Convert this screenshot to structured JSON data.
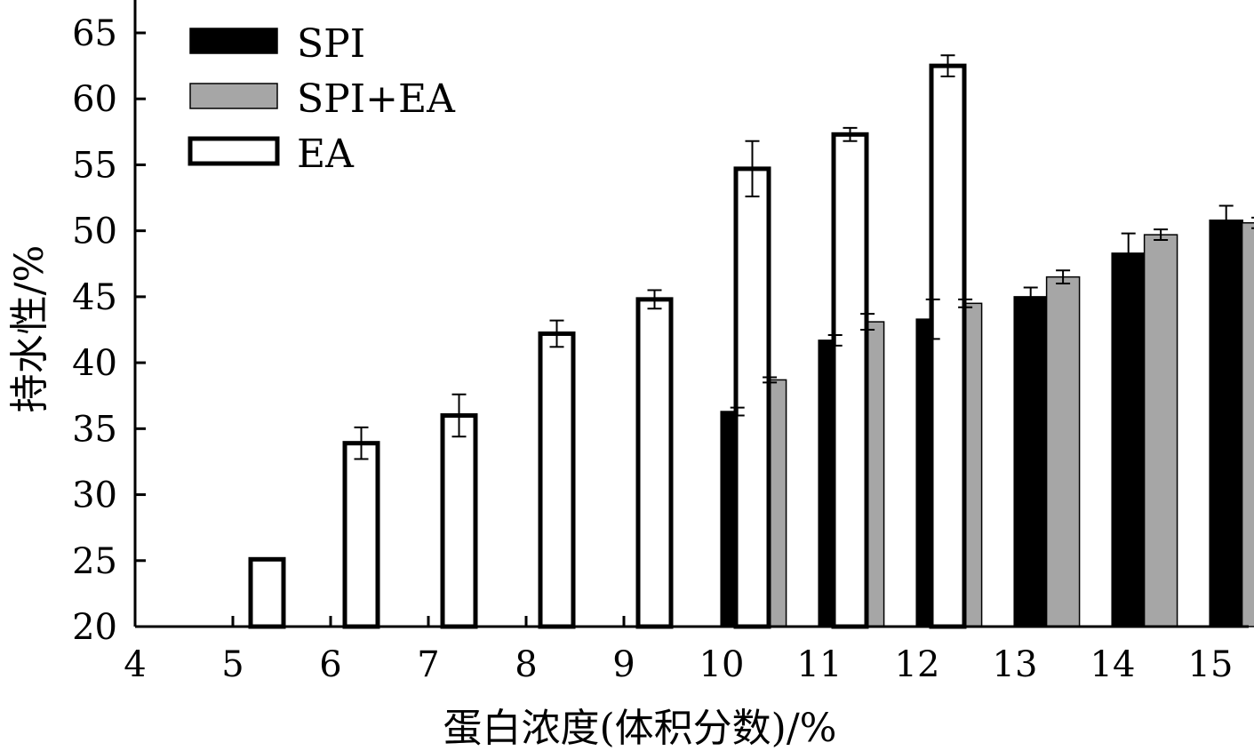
{
  "chart_data": {
    "type": "bar",
    "title": "",
    "xlabel": "蛋白浓度(体积分数)/%",
    "ylabel": "持水性/%",
    "xlim": [
      4,
      16
    ],
    "ylim": [
      20,
      65
    ],
    "x_ticks": [
      "4",
      "5",
      "6",
      "7",
      "8",
      "9",
      "10",
      "11",
      "12",
      "13",
      "14",
      "15"
    ],
    "y_ticks": [
      "20",
      "25",
      "30",
      "35",
      "40",
      "45",
      "50",
      "55",
      "60",
      "65"
    ],
    "grid": false,
    "legend_position": "top-left",
    "series": [
      {
        "name": "SPI",
        "color": "#000000",
        "x": [
          10,
          11,
          12,
          13,
          14,
          15
        ],
        "values": [
          36.3,
          41.7,
          43.3,
          45.0,
          48.3,
          50.8
        ],
        "errors": [
          0.3,
          0.4,
          1.5,
          0.7,
          1.5,
          1.1
        ]
      },
      {
        "name": "SPI+EA",
        "color": "#a6a6a6",
        "x": [
          10,
          11,
          12,
          13,
          14,
          15
        ],
        "values": [
          38.7,
          43.1,
          44.5,
          46.5,
          49.7,
          50.6
        ],
        "errors": [
          0.2,
          0.6,
          0.3,
          0.5,
          0.4,
          0.4
        ]
      },
      {
        "name": "EA",
        "color": "#ffffff",
        "x": [
          5,
          6,
          7,
          8,
          9,
          10,
          11,
          12
        ],
        "values": [
          25.1,
          33.9,
          36.0,
          42.2,
          44.8,
          54.7,
          57.3,
          62.5
        ],
        "errors": [
          0,
          1.2,
          1.6,
          1.0,
          0.7,
          2.1,
          0.5,
          0.8
        ]
      }
    ]
  }
}
